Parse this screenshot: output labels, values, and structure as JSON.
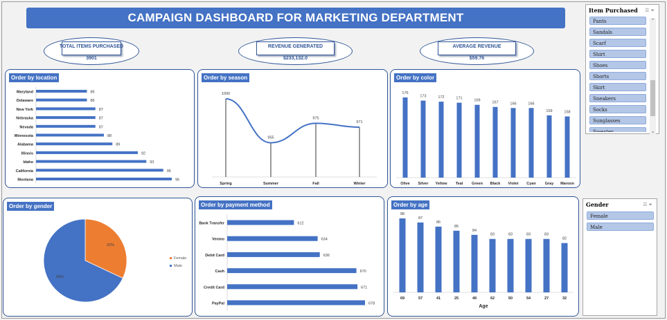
{
  "header": {
    "title": "CAMPAIGN DASHBOARD FOR MARKETING DEPARTMENT"
  },
  "kpis": [
    {
      "label": "TOTAL ITEMS PURCHASED",
      "value": "3901"
    },
    {
      "label": "REVENUE GENERATED",
      "value": "$233,132.0"
    },
    {
      "label": "AVERAGE REVENUE",
      "value": "$59.76"
    }
  ],
  "panels": {
    "location": "Order by location",
    "season": "Order by season",
    "color": "Order by color",
    "gender": "Order by gender",
    "payment": "Order by payment method",
    "age": "Order by age"
  },
  "slicers": {
    "items": {
      "title": "Item Purchased",
      "options": [
        "Pants",
        "Sandals",
        "Scarf",
        "Shirt",
        "Shoes",
        "Shorts",
        "Skirt",
        "Sneakers",
        "Socks",
        "Sunglasses",
        "Sweater"
      ]
    },
    "gender": {
      "title": "Gender",
      "options": [
        "Female",
        "Male"
      ]
    }
  },
  "colors": {
    "accent": "#4472c4",
    "orange": "#ed7d31",
    "border": "#2f5597"
  },
  "chart_data": [
    {
      "id": "location",
      "type": "bar",
      "orientation": "horizontal",
      "title": "Order by location",
      "categories": [
        "Maryland",
        "Delaware",
        "New York",
        "Nebraska",
        "Nevada",
        "Minnesota",
        "Alabama",
        "Illinois",
        "Idaho",
        "California",
        "Montana"
      ],
      "values": [
        86,
        86,
        87,
        87,
        87,
        88,
        89,
        92,
        93,
        95,
        96
      ]
    },
    {
      "id": "season",
      "type": "line",
      "title": "Order by season",
      "categories": [
        "Spring",
        "Summer",
        "Fall",
        "Winter"
      ],
      "values": [
        1000,
        955,
        975,
        971
      ]
    },
    {
      "id": "color",
      "type": "bar",
      "title": "Order by color",
      "categories": [
        "Olive",
        "Silver",
        "Yellow",
        "Teal",
        "Green",
        "Black",
        "Violet",
        "Cyan",
        "Gray",
        "Maroon"
      ],
      "values": [
        176,
        173,
        172,
        171,
        169,
        167,
        166,
        166,
        159,
        158
      ]
    },
    {
      "id": "gender",
      "type": "pie",
      "title": "Order by gender",
      "series": [
        {
          "name": "Female",
          "value": 32,
          "label": "32%",
          "color": "#ed7d31"
        },
        {
          "name": "Male",
          "value": 68,
          "label": "68%",
          "color": "#4472c4"
        }
      ],
      "legend": "right"
    },
    {
      "id": "payment",
      "type": "bar",
      "orientation": "horizontal",
      "title": "Order by payment method",
      "categories": [
        "Bank Transfer",
        "Venmo",
        "Debit Card",
        "Cash",
        "Credit Card",
        "PayPal"
      ],
      "values": [
        612,
        634,
        636,
        670,
        671,
        678
      ]
    },
    {
      "id": "age",
      "type": "bar",
      "title": "Order by age",
      "categories": [
        "69",
        "57",
        "41",
        "25",
        "49",
        "62",
        "50",
        "54",
        "27",
        "32"
      ],
      "values": [
        88,
        87,
        86,
        85,
        84,
        83,
        83,
        83,
        83,
        82
      ],
      "xlabel": "Age"
    }
  ]
}
